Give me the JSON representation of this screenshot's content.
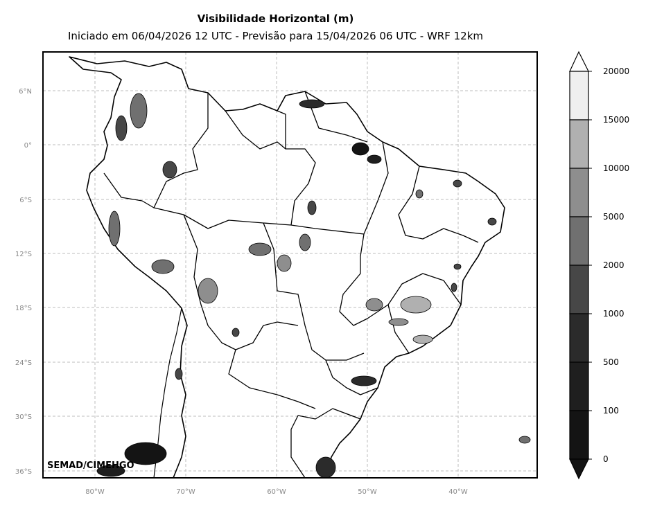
{
  "title": "Visibilidade Horizontal (m)",
  "subtitle": "Iniciado em 06/04/2026 12 UTC - Previsão para 15/04/2026 06 UTC - WRF 12km",
  "credit": "SEMAD/CIMEHGO",
  "lat_ticks": [
    "6°N",
    "0°",
    "6°S",
    "12°S",
    "18°S",
    "24°S",
    "30°S",
    "36°S"
  ],
  "lon_ticks": [
    "80°W",
    "70°W",
    "60°W",
    "50°W",
    "40°W"
  ],
  "colorbar": {
    "labels": [
      "0",
      "100",
      "500",
      "1000",
      "2000",
      "5000",
      "10000",
      "15000",
      "20000"
    ],
    "colors": [
      "#141414",
      "#1f1f1f",
      "#2b2b2b",
      "#474747",
      "#707070",
      "#8e8e8e",
      "#b0b0b0",
      "#efefef"
    ]
  }
}
